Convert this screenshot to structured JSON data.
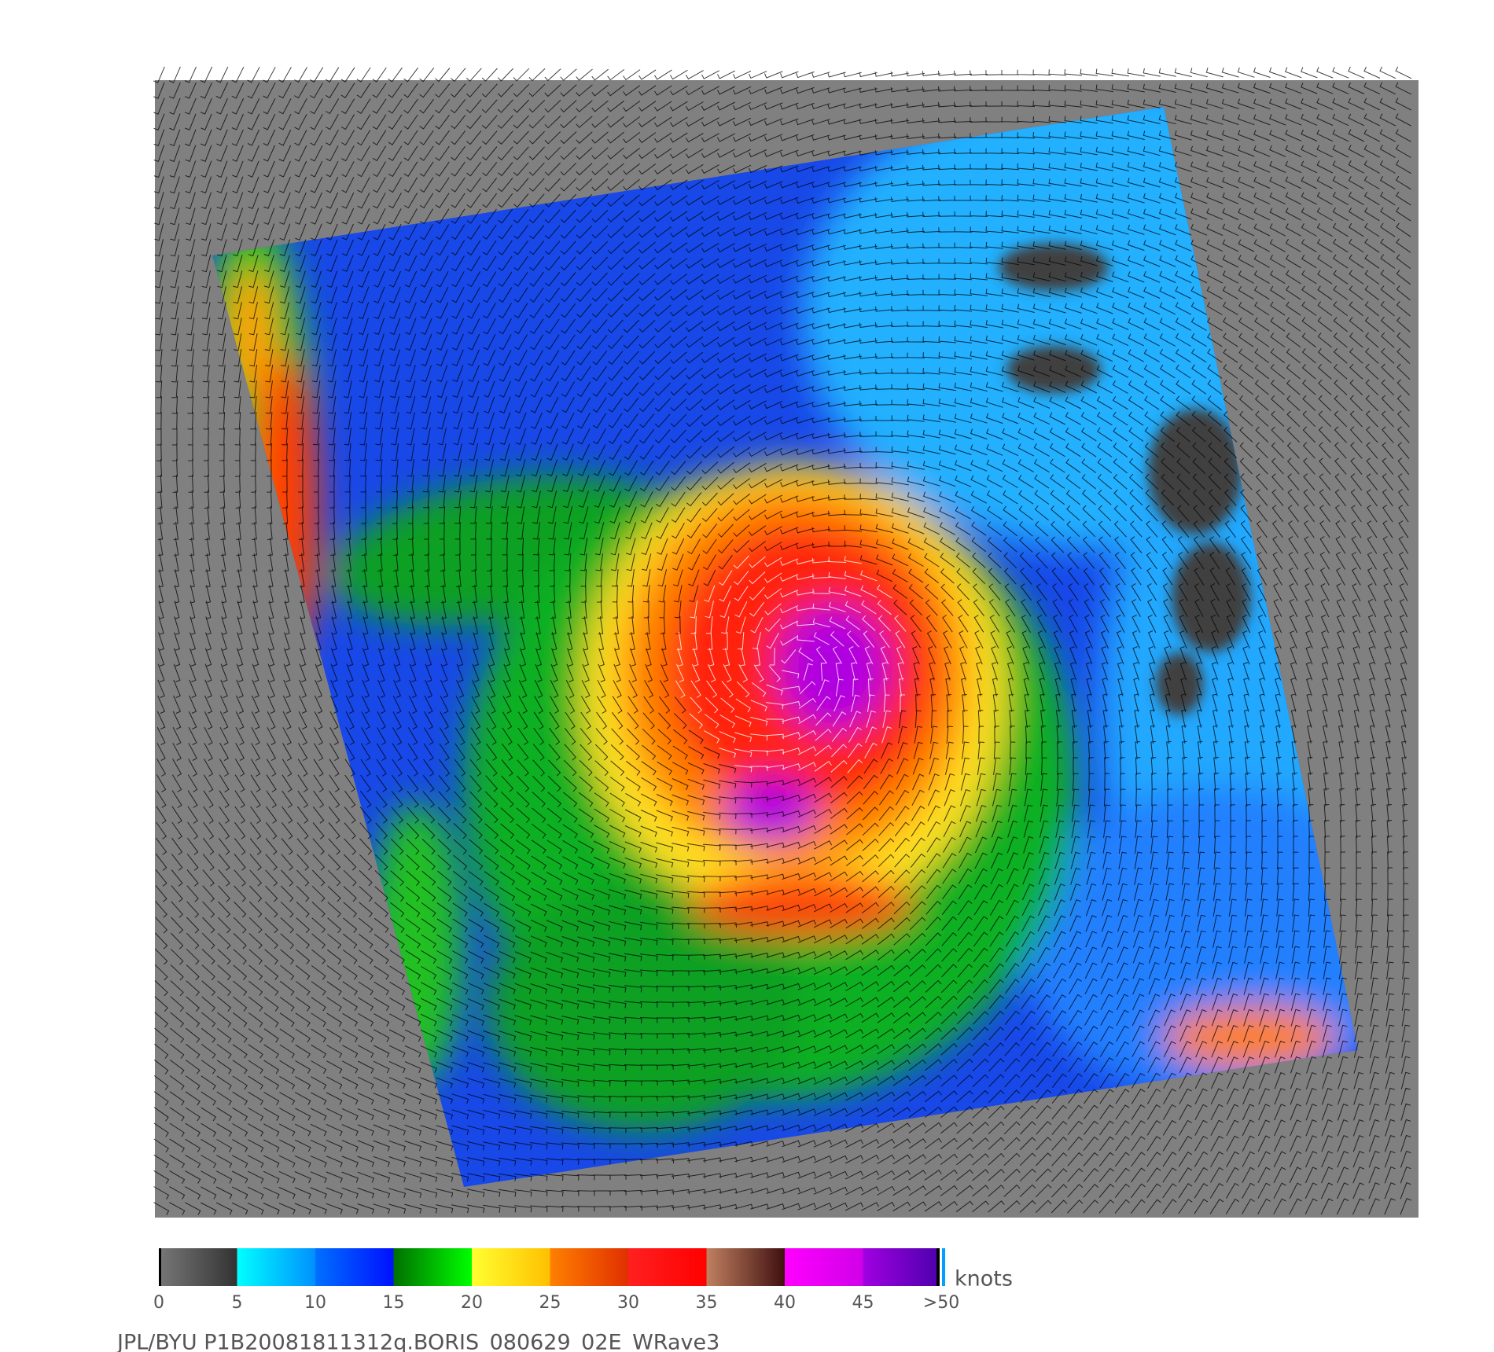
{
  "colorbar": {
    "unit_label": "knots",
    "lim": [
      0,
      50
    ],
    "ticks": [
      0,
      5,
      10,
      15,
      20,
      25,
      30,
      35,
      40,
      45,
      {
        "value": 50,
        "label": ">50"
      }
    ],
    "segment_colors": [
      [
        "#777777",
        "#333333"
      ],
      [
        "#00ffff",
        "#0090ff"
      ],
      [
        "#0070ff",
        "#0010ff"
      ],
      [
        "#007000",
        "#00ff00"
      ],
      [
        "#ffff30",
        "#ffc000"
      ],
      [
        "#ff8000",
        "#e03000"
      ],
      [
        "#ff2020",
        "#ff0000"
      ],
      [
        "#c08060",
        "#401010"
      ],
      [
        "#ff00ff",
        "#d000e8"
      ],
      [
        "#a000e0",
        "#5000b0"
      ]
    ]
  },
  "caption": "JPL/BYU  P1B20081811312q.BORIS_080629_02E_WRave3"
}
